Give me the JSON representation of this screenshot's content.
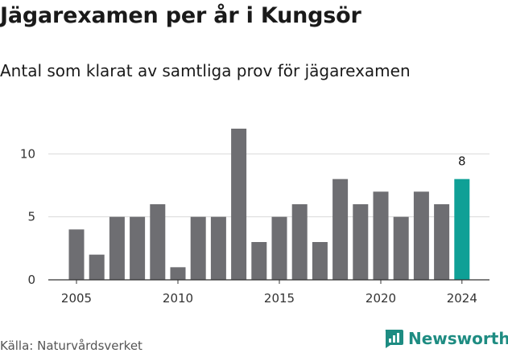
{
  "title": "Jägarexamen per år i Kungsör",
  "subtitle": "Antal som klarat av samtliga prov för jägarexamen",
  "source": "Källa: Naturvårdsverket",
  "brand": {
    "name": "Newsworthy",
    "icon": "newsworthy-logo-icon"
  },
  "colors": {
    "bar": "#6e6e72",
    "highlight": "#0fa096",
    "grid": "#d9d9d9",
    "axis": "#333333",
    "brand": "#1e8c82"
  },
  "chart_data": {
    "type": "bar",
    "x": [
      2005,
      2006,
      2007,
      2008,
      2009,
      2010,
      2011,
      2012,
      2013,
      2014,
      2015,
      2016,
      2017,
      2018,
      2019,
      2020,
      2021,
      2022,
      2023,
      2024
    ],
    "values": [
      4,
      2,
      5,
      5,
      6,
      1,
      5,
      5,
      12,
      3,
      5,
      6,
      3,
      8,
      6,
      7,
      5,
      7,
      6,
      8
    ],
    "highlight_index": 19,
    "data_labels": [
      {
        "index": 19,
        "text": "8"
      }
    ],
    "x_ticks": [
      "2005",
      "2010",
      "2015",
      "2020",
      "2024"
    ],
    "x_tick_values": [
      2005,
      2010,
      2015,
      2020,
      2024
    ],
    "y_ticks": [
      "0",
      "5",
      "10"
    ],
    "y_tick_values": [
      0,
      5,
      10
    ],
    "ylim": [
      0,
      12
    ],
    "grid": true
  }
}
